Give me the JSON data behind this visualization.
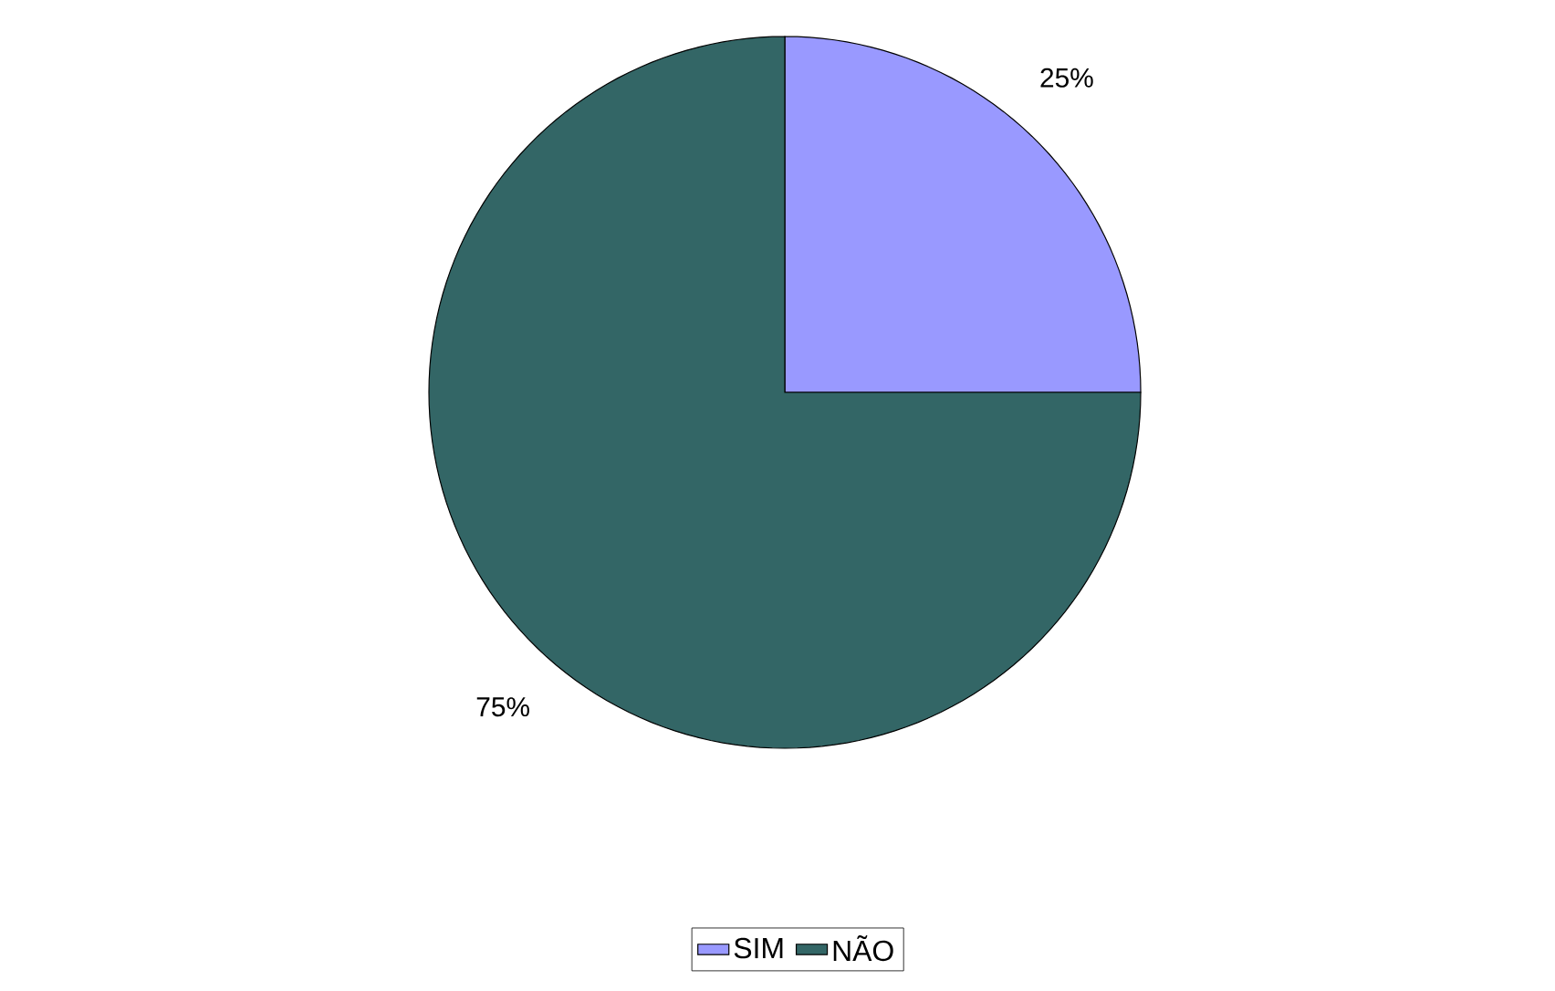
{
  "chart_data": {
    "type": "pie",
    "categories": [
      "SIM",
      "NÃO"
    ],
    "values": [
      25,
      75
    ],
    "colors": [
      "#9999ff",
      "#336666"
    ],
    "value_labels": [
      "25%",
      "75%"
    ],
    "legend": "bottom"
  }
}
